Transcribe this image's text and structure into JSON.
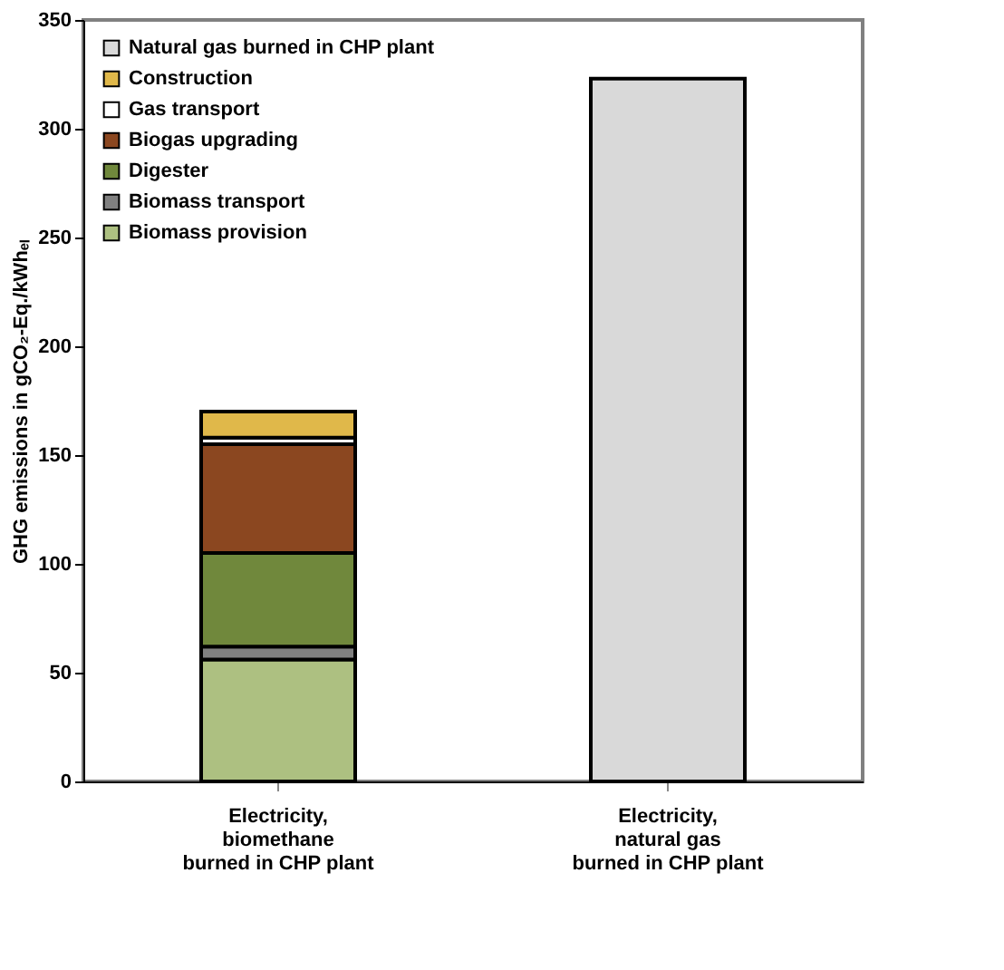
{
  "chart_data": {
    "type": "bar",
    "stacked": true,
    "ylabel": "GHG emissions in gCO₂-Eq./kWhₑₗ",
    "categories": [
      "Electricity,\nbiomethane\nburned in CHP plant",
      "Electricity,\nnatural gas\nburned in CHP plant"
    ],
    "series": [
      {
        "name": "Biomass provision",
        "color": "#adc081",
        "values": [
          56,
          null
        ]
      },
      {
        "name": "Biomass transport",
        "color": "#808080",
        "values": [
          6,
          null
        ]
      },
      {
        "name": "Digester",
        "color": "#70883c",
        "values": [
          43,
          null
        ]
      },
      {
        "name": "Biogas upgrading",
        "color": "#8b4720",
        "values": [
          50,
          null
        ]
      },
      {
        "name": "Gas transport",
        "color": "#ffffff",
        "values": [
          3,
          null
        ]
      },
      {
        "name": "Construction",
        "color": "#e0b84a",
        "values": [
          12,
          null
        ]
      },
      {
        "name": "Natural gas burned in CHP plant",
        "color": "#d9d9d9",
        "values": [
          null,
          323
        ]
      }
    ],
    "ylim": [
      0,
      350
    ],
    "yticks": [
      0,
      50,
      100,
      150,
      200,
      250,
      300,
      350
    ],
    "grid": false,
    "legend": "top left"
  }
}
